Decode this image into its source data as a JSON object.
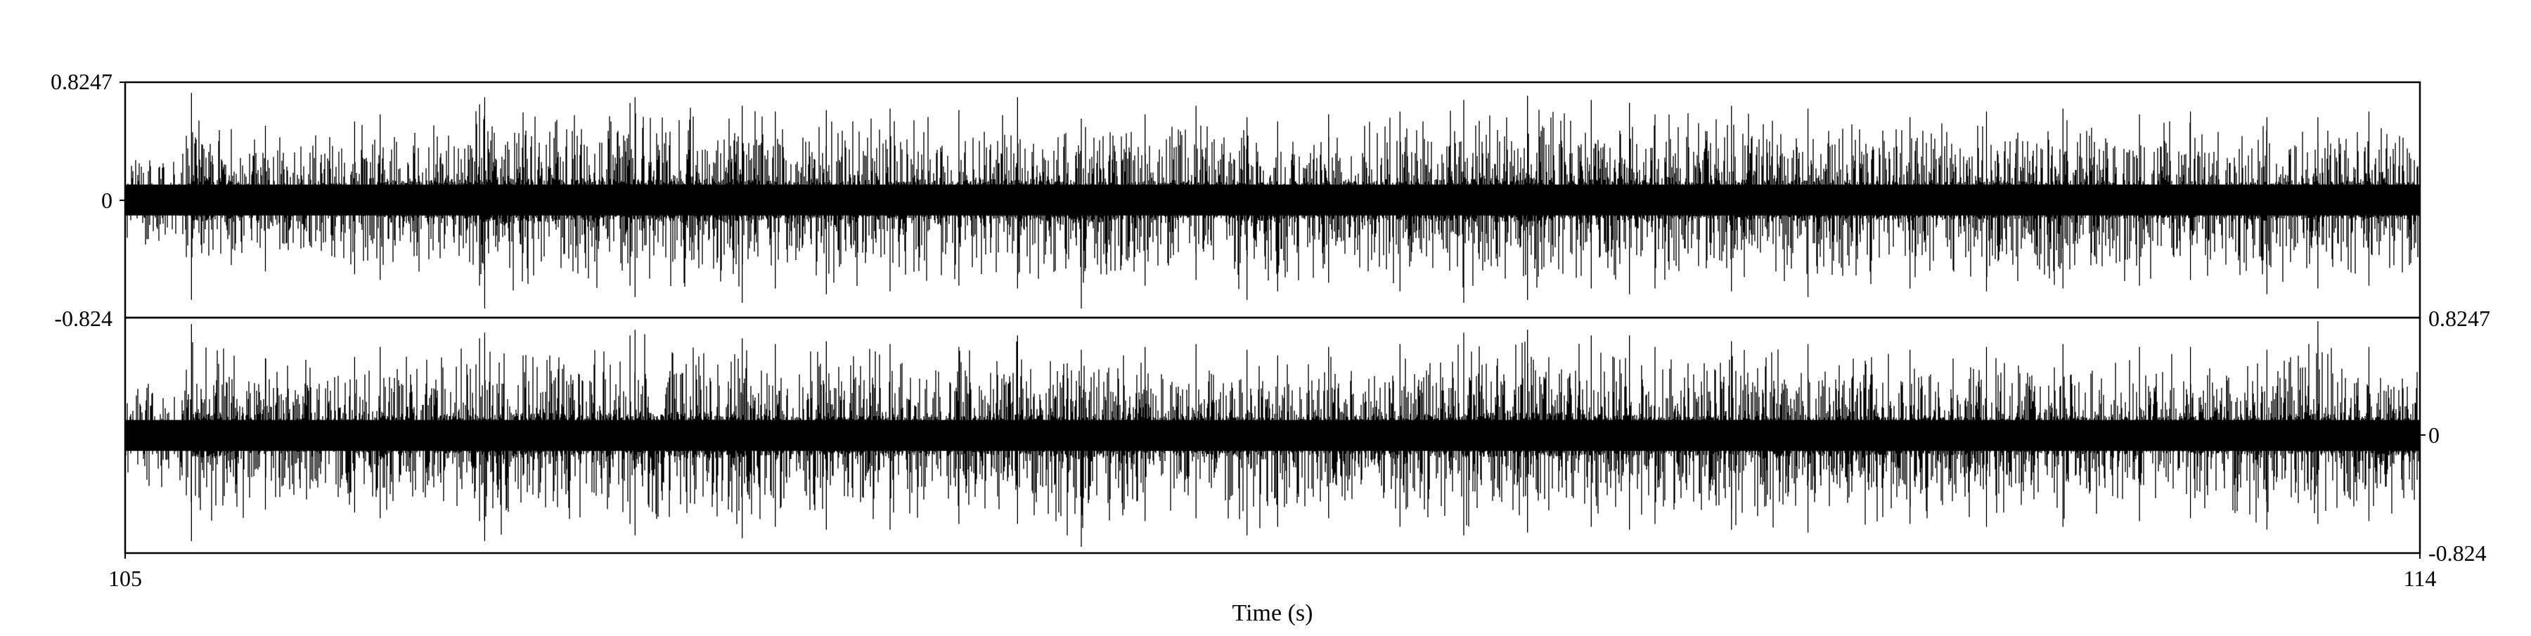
{
  "chart_data": {
    "type": "line",
    "title": "",
    "xlabel": "Time (s)",
    "x_range": [
      105,
      114
    ],
    "x_tick_labels": [
      "105",
      "114"
    ],
    "channels": [
      {
        "ylim": [
          -0.824,
          0.8247
        ],
        "y_tick_labels": [
          "0.8247",
          "0",
          "-0.824"
        ],
        "tick_side": "left",
        "envelope": {
          "x": [
            105.0,
            105.24,
            105.26,
            105.55,
            105.9,
            106.0,
            106.39,
            106.41,
            106.98,
            107.0,
            107.42,
            107.55,
            107.75,
            108.0,
            108.27,
            108.5,
            108.75,
            109.0,
            109.2,
            109.4,
            109.52,
            109.72,
            110.0,
            110.25,
            110.5,
            110.75,
            110.9,
            111.0,
            111.3,
            111.6,
            112.0,
            112.3,
            112.6,
            112.9,
            113.1,
            113.4,
            113.6,
            113.8,
            114.0
          ],
          "upper": [
            0.38,
            0.45,
            0.75,
            0.52,
            0.55,
            0.6,
            0.67,
            0.72,
            0.68,
            0.72,
            0.66,
            0.62,
            0.63,
            0.64,
            0.63,
            0.72,
            0.57,
            0.6,
            0.66,
            0.58,
            0.55,
            0.6,
            0.62,
            0.7,
            0.73,
            0.7,
            0.68,
            0.6,
            0.66,
            0.64,
            0.58,
            0.62,
            0.64,
            0.6,
            0.62,
            0.58,
            0.58,
            0.62,
            0.55
          ],
          "lower": [
            -0.34,
            -0.4,
            -0.7,
            -0.5,
            -0.52,
            -0.56,
            -0.6,
            -0.76,
            -0.6,
            -0.68,
            -0.72,
            -0.62,
            -0.66,
            -0.64,
            -0.6,
            -0.62,
            -0.76,
            -0.6,
            -0.56,
            -0.7,
            -0.64,
            -0.58,
            -0.64,
            -0.72,
            -0.7,
            -0.62,
            -0.66,
            -0.62,
            -0.64,
            -0.68,
            -0.62,
            -0.64,
            -0.62,
            -0.6,
            -0.56,
            -0.66,
            -0.62,
            -0.6,
            -0.62
          ]
        }
      },
      {
        "ylim": [
          -0.824,
          0.8247
        ],
        "y_tick_labels": [
          "0.8247",
          "0",
          "-0.824"
        ],
        "tick_side": "right",
        "envelope": {
          "x": [
            105.0,
            105.24,
            105.26,
            105.55,
            105.9,
            106.0,
            106.39,
            106.41,
            106.98,
            107.0,
            107.42,
            107.55,
            107.75,
            108.0,
            108.27,
            108.5,
            108.75,
            109.0,
            109.2,
            109.4,
            109.52,
            109.72,
            110.0,
            110.25,
            110.5,
            110.75,
            110.9,
            111.0,
            111.3,
            111.6,
            112.0,
            112.3,
            112.6,
            112.9,
            113.1,
            113.4,
            113.6,
            113.8,
            114.0
          ],
          "upper": [
            0.4,
            0.46,
            0.78,
            0.54,
            0.55,
            0.62,
            0.68,
            0.72,
            0.7,
            0.74,
            0.68,
            0.64,
            0.66,
            0.64,
            0.62,
            0.7,
            0.6,
            0.62,
            0.64,
            0.6,
            0.56,
            0.62,
            0.64,
            0.72,
            0.74,
            0.7,
            0.7,
            0.62,
            0.66,
            0.64,
            0.6,
            0.62,
            0.64,
            0.62,
            0.62,
            0.6,
            0.8,
            0.62,
            0.56
          ],
          "lower": [
            -0.36,
            -0.42,
            -0.74,
            -0.52,
            -0.54,
            -0.58,
            -0.6,
            -0.74,
            -0.62,
            -0.7,
            -0.72,
            -0.64,
            -0.66,
            -0.66,
            -0.62,
            -0.62,
            -0.78,
            -0.6,
            -0.58,
            -0.7,
            -0.64,
            -0.58,
            -0.64,
            -0.7,
            -0.68,
            -0.64,
            -0.66,
            -0.62,
            -0.66,
            -0.68,
            -0.62,
            -0.64,
            -0.64,
            -0.6,
            -0.58,
            -0.66,
            -0.62,
            -0.6,
            -0.7
          ]
        }
      }
    ],
    "grid": false,
    "legend": "none"
  }
}
